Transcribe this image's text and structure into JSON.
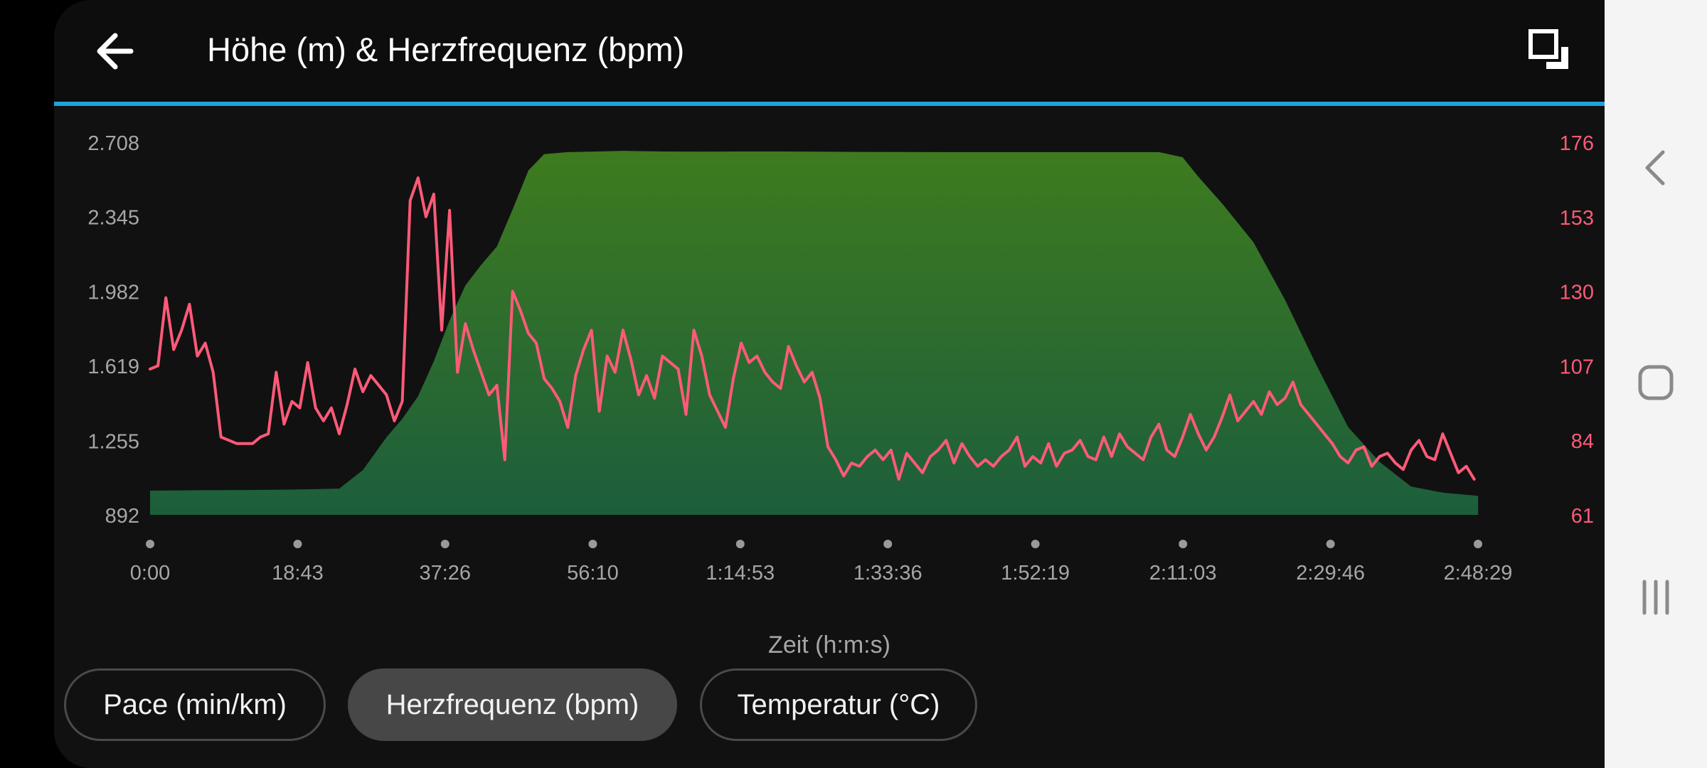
{
  "header": {
    "title": "Höhe (m) & Herzfrequenz (bpm)",
    "back_icon": "arrow-left-icon",
    "fullscreen_icon": "fullscreen-icon"
  },
  "colors": {
    "accent_line": "#1fa3dc",
    "elevation_fill_top": "#3e7b1f",
    "elevation_fill_bottom": "#1c5e3c",
    "heart_rate_line": "#ff5a78",
    "left_axis_text": "#a6a6a6",
    "right_axis_text": "#ff5a78"
  },
  "chips": [
    {
      "label": "Pace (min/km)",
      "selected": false
    },
    {
      "label": "Herzfrequenz (bpm)",
      "selected": true
    },
    {
      "label": "Temperatur (°C)",
      "selected": false
    }
  ],
  "navbar": {
    "back_icon": "chevron-left-icon",
    "home_icon": "home-icon",
    "recents_icon": "recents-icon"
  },
  "chart_data": {
    "type": "area",
    "xlabel": "Zeit (h:m:s)",
    "x_unit_minutes": true,
    "xlim": [
      0,
      168.48
    ],
    "x_ticks": [
      0,
      18.72,
      37.43,
      56.17,
      74.88,
      93.6,
      112.32,
      131.05,
      149.77,
      168.48
    ],
    "x_tick_labels": [
      "0:00",
      "18:43",
      "37:26",
      "56:10",
      "1:14:53",
      "1:33:36",
      "1:52:19",
      "2:11:03",
      "2:29:46",
      "2:48:29"
    ],
    "left_axis": {
      "ylim": [
        892,
        2708
      ],
      "ticks": [
        892,
        1255,
        1619,
        1982,
        2345,
        2708
      ],
      "tick_labels": [
        "892",
        "1.255",
        "1.619",
        "1.982",
        "2.345",
        "2.708"
      ]
    },
    "right_axis": {
      "ylim": [
        61,
        176
      ],
      "ticks": [
        61,
        84,
        107,
        130,
        153,
        176
      ],
      "tick_labels": [
        "61",
        "84",
        "107",
        "130",
        "153",
        "176"
      ]
    },
    "series": [
      {
        "axis": "left",
        "kind": "area",
        "x": [
          0,
          6,
          12,
          18,
          24,
          27,
          30,
          32,
          34,
          36,
          38,
          40,
          42,
          44,
          46,
          48,
          50,
          53,
          56,
          60,
          65,
          70,
          75,
          80,
          90,
          100,
          110,
          120,
          128,
          131,
          133,
          136,
          140,
          144,
          148,
          152,
          156,
          160,
          164,
          168.5
        ],
        "values": [
          1010,
          1012,
          1013,
          1015,
          1020,
          1110,
          1270,
          1360,
          1470,
          1640,
          1840,
          2010,
          2110,
          2200,
          2380,
          2570,
          2650,
          2660,
          2662,
          2666,
          2663,
          2662,
          2663,
          2663,
          2661,
          2660,
          2660,
          2660,
          2660,
          2635,
          2540,
          2410,
          2220,
          1940,
          1620,
          1320,
          1150,
          1030,
          1000,
          985
        ]
      },
      {
        "axis": "right",
        "kind": "line",
        "x": [
          0,
          1,
          2,
          3,
          4,
          5,
          6,
          7,
          8,
          9,
          10,
          11,
          12,
          13,
          14,
          15,
          16,
          17,
          18,
          19,
          20,
          21,
          22,
          23,
          24,
          25,
          26,
          27,
          28,
          29,
          30,
          31,
          32,
          33,
          34,
          35,
          36,
          37,
          38,
          39,
          40,
          41,
          42,
          43,
          44,
          45,
          46,
          47,
          48,
          49,
          50,
          51,
          52,
          53,
          54,
          55,
          56,
          57,
          58,
          59,
          60,
          61,
          62,
          63,
          64,
          65,
          66,
          67,
          68,
          69,
          70,
          71,
          72,
          73,
          74,
          75,
          76,
          77,
          78,
          79,
          80,
          81,
          82,
          83,
          84,
          85,
          86,
          87,
          88,
          89,
          90,
          91,
          92,
          93,
          94,
          95,
          96,
          97,
          98,
          99,
          100,
          101,
          102,
          103,
          104,
          105,
          106,
          107,
          108,
          109,
          110,
          111,
          112,
          113,
          114,
          115,
          116,
          117,
          118,
          119,
          120,
          121,
          122,
          123,
          124,
          125,
          126,
          127,
          128,
          129,
          130,
          131,
          132,
          133,
          134,
          135,
          136,
          137,
          138,
          139,
          140,
          141,
          142,
          143,
          144,
          145,
          146,
          147,
          148,
          149,
          150,
          151,
          152,
          153,
          154,
          155,
          156,
          157,
          158,
          159,
          160,
          161,
          162,
          163,
          164,
          165,
          166,
          167,
          168
        ],
        "values": [
          106,
          107,
          128,
          112,
          118,
          126,
          110,
          114,
          105,
          85,
          84,
          83,
          83,
          83,
          85,
          86,
          105,
          89,
          96,
          94,
          108,
          94,
          90,
          94,
          86,
          95,
          106,
          99,
          104,
          101,
          98,
          90,
          96,
          158,
          165,
          153,
          160,
          118,
          155,
          105,
          120,
          112,
          105,
          98,
          101,
          78,
          130,
          124,
          117,
          114,
          103,
          100,
          96,
          88,
          104,
          112,
          118,
          93,
          110,
          105,
          118,
          109,
          98,
          104,
          97,
          110,
          108,
          106,
          92,
          118,
          110,
          98,
          93,
          88,
          103,
          114,
          108,
          110,
          105,
          102,
          100,
          113,
          107,
          102,
          105,
          97,
          82,
          78,
          73,
          77,
          76,
          79,
          81,
          78,
          81,
          72,
          80,
          77,
          74,
          79,
          81,
          84,
          77,
          83,
          79,
          76,
          78,
          76,
          79,
          81,
          85,
          76,
          79,
          77,
          83,
          76,
          80,
          81,
          84,
          79,
          78,
          85,
          79,
          86,
          82,
          80,
          78,
          85,
          89,
          81,
          79,
          85,
          92,
          86,
          81,
          85,
          91,
          98,
          90,
          93,
          96,
          92,
          99,
          95,
          97,
          102,
          95,
          92,
          89,
          86,
          83,
          79,
          77,
          81,
          82,
          76,
          79,
          80,
          77,
          75,
          81,
          84,
          79,
          78,
          86,
          80,
          74,
          76,
          72
        ]
      }
    ]
  }
}
